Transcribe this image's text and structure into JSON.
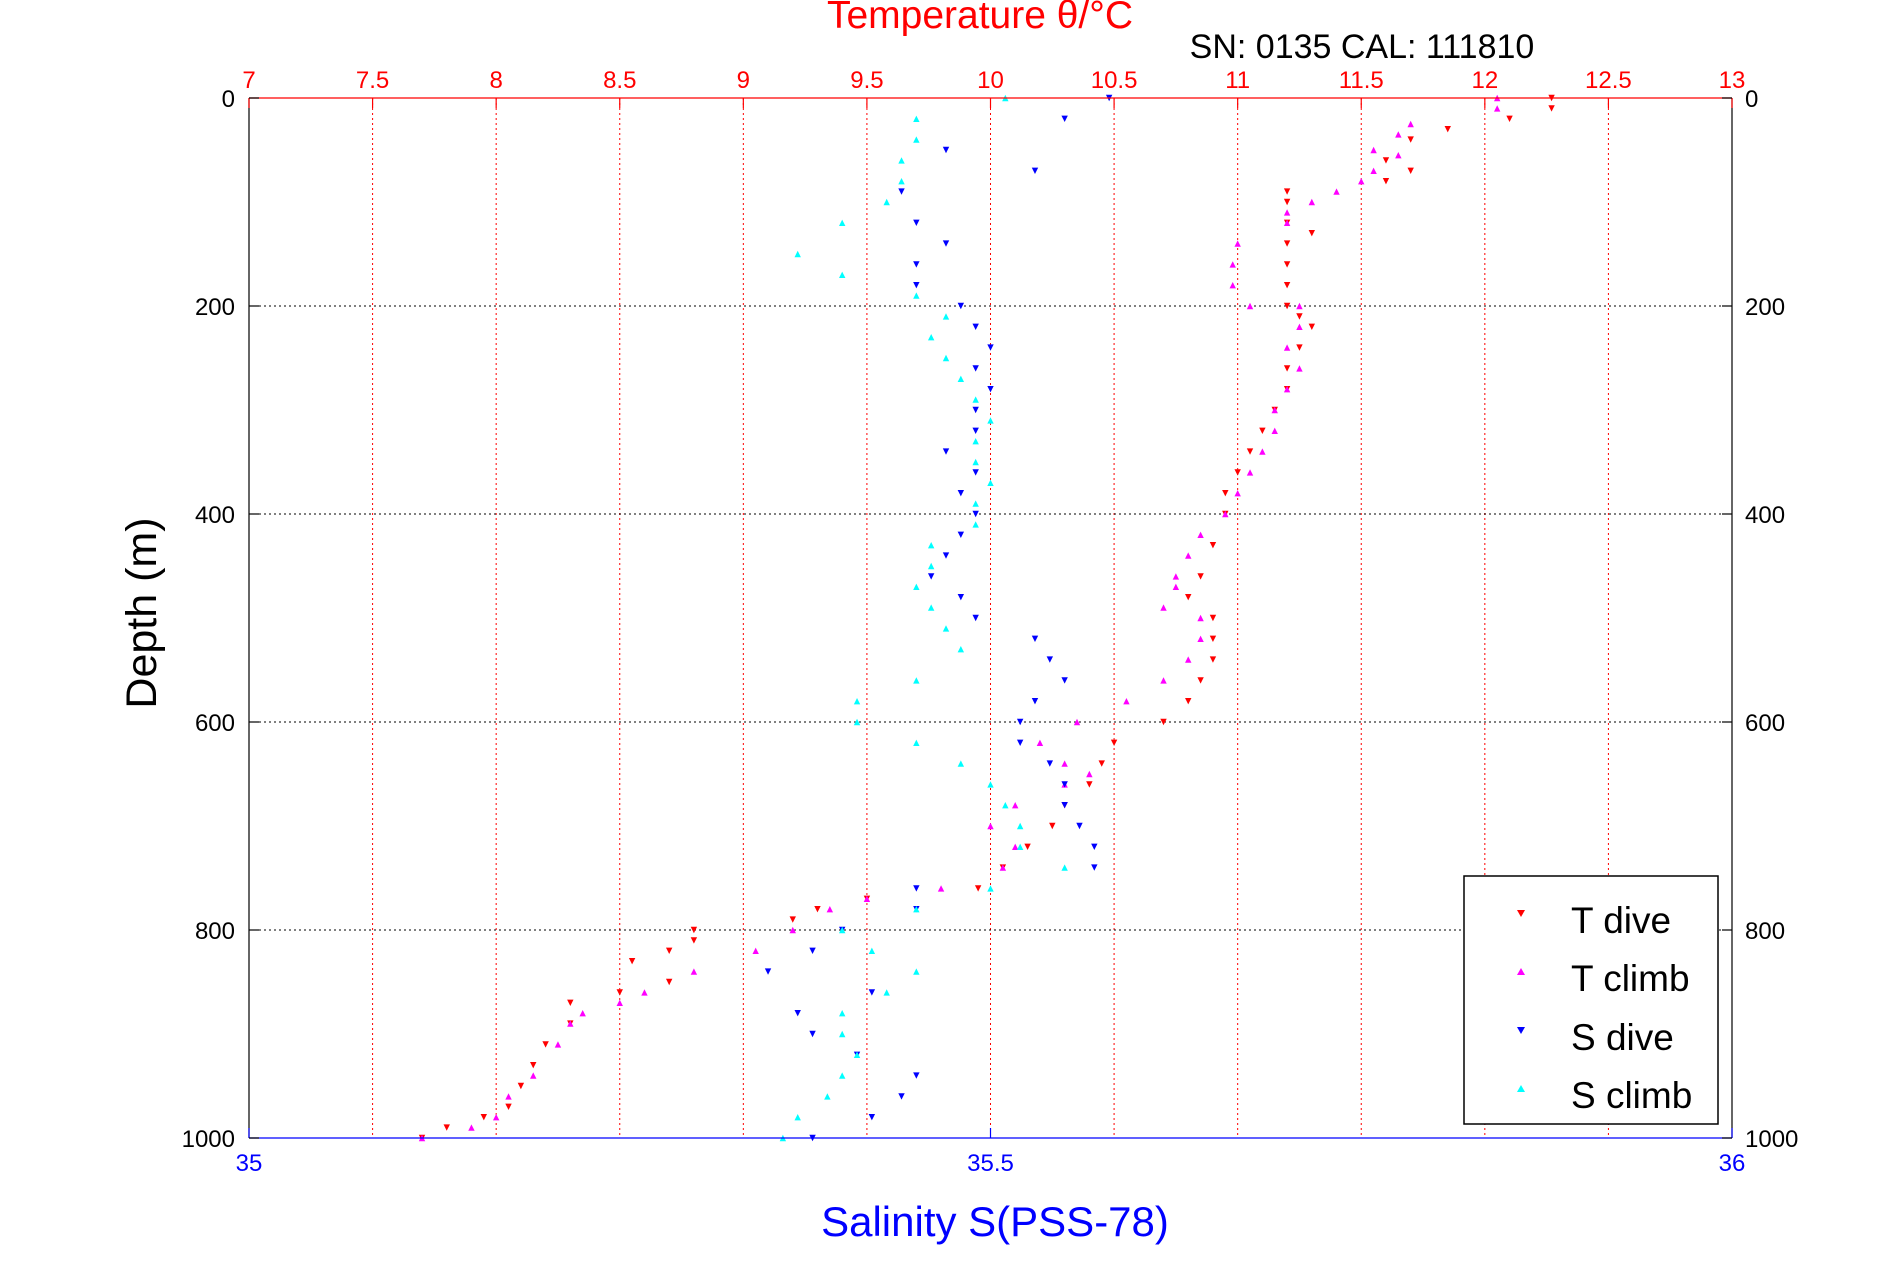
{
  "chart_data": {
    "type": "scatter",
    "title": "Temperature θ/°C",
    "subtitle": "SN: 0135  CAL: 111810",
    "ylabel": "Depth (m)",
    "xlabel_bottom": "Salinity S(PSS-78)",
    "xlabel_top": "Temperature θ/°C",
    "y_axis": {
      "range": [
        0,
        1000
      ],
      "reversed": true,
      "ticks": [
        0,
        200,
        400,
        600,
        800,
        1000
      ],
      "tick_labels": [
        "0",
        "200",
        "400",
        "600",
        "800",
        "1000"
      ]
    },
    "temperature_axis": {
      "range": [
        7,
        13
      ],
      "ticks": [
        7,
        7.5,
        8,
        8.5,
        9,
        9.5,
        10,
        10.5,
        11,
        11.5,
        12,
        12.5,
        13
      ],
      "tick_labels": [
        "7",
        "7.5",
        "8",
        "8.5",
        "9",
        "9.5",
        "10",
        "10.5",
        "11",
        "11.5",
        "12",
        "12.5",
        "13"
      ],
      "grid": true
    },
    "salinity_axis": {
      "range": [
        35,
        36
      ],
      "ticks": [
        35,
        35.5,
        36
      ],
      "tick_labels": [
        "35",
        "35.5",
        "36"
      ]
    },
    "grid": true,
    "legend_position": "bottom-right",
    "colors": {
      "temperature": "#ff0000",
      "salinity": "#0000ff",
      "t_dive": "#ff0000",
      "t_climb": "#ff00ff",
      "s_dive": "#0000ff",
      "s_climb": "#00ffff"
    },
    "series": [
      {
        "name": "T dive",
        "axis": "temperature",
        "color": "#ff0000",
        "marker": "down-triangle",
        "points": [
          [
            12.27,
            0
          ],
          [
            12.27,
            10
          ],
          [
            12.1,
            20
          ],
          [
            11.85,
            30
          ],
          [
            11.7,
            40
          ],
          [
            11.6,
            60
          ],
          [
            11.7,
            70
          ],
          [
            11.6,
            80
          ],
          [
            11.2,
            90
          ],
          [
            11.2,
            100
          ],
          [
            11.2,
            120
          ],
          [
            11.3,
            130
          ],
          [
            11.2,
            140
          ],
          [
            11.2,
            160
          ],
          [
            11.2,
            180
          ],
          [
            11.2,
            200
          ],
          [
            11.25,
            210
          ],
          [
            11.3,
            220
          ],
          [
            11.25,
            240
          ],
          [
            11.2,
            260
          ],
          [
            11.2,
            280
          ],
          [
            11.15,
            300
          ],
          [
            11.1,
            320
          ],
          [
            11.05,
            340
          ],
          [
            11.0,
            360
          ],
          [
            10.95,
            380
          ],
          [
            10.95,
            400
          ],
          [
            10.9,
            430
          ],
          [
            10.85,
            460
          ],
          [
            10.8,
            480
          ],
          [
            10.9,
            500
          ],
          [
            10.9,
            520
          ],
          [
            10.9,
            540
          ],
          [
            10.85,
            560
          ],
          [
            10.8,
            580
          ],
          [
            10.7,
            600
          ],
          [
            10.5,
            620
          ],
          [
            10.45,
            640
          ],
          [
            10.4,
            660
          ],
          [
            10.3,
            680
          ],
          [
            10.25,
            700
          ],
          [
            10.15,
            720
          ],
          [
            10.05,
            740
          ],
          [
            9.95,
            760
          ],
          [
            9.5,
            770
          ],
          [
            9.3,
            780
          ],
          [
            9.2,
            790
          ],
          [
            8.8,
            800
          ],
          [
            8.8,
            810
          ],
          [
            8.7,
            820
          ],
          [
            8.55,
            830
          ],
          [
            8.7,
            850
          ],
          [
            8.5,
            860
          ],
          [
            8.3,
            870
          ],
          [
            8.3,
            890
          ],
          [
            8.2,
            910
          ],
          [
            8.15,
            930
          ],
          [
            8.1,
            950
          ],
          [
            8.05,
            970
          ],
          [
            7.95,
            980
          ],
          [
            7.8,
            990
          ],
          [
            7.7,
            1000
          ]
        ]
      },
      {
        "name": "T climb",
        "axis": "temperature",
        "color": "#ff00ff",
        "marker": "up-triangle",
        "points": [
          [
            12.05,
            0
          ],
          [
            12.05,
            10
          ],
          [
            11.7,
            25
          ],
          [
            11.65,
            35
          ],
          [
            11.55,
            50
          ],
          [
            11.65,
            55
          ],
          [
            11.55,
            70
          ],
          [
            11.5,
            80
          ],
          [
            11.4,
            90
          ],
          [
            11.3,
            100
          ],
          [
            11.2,
            110
          ],
          [
            11.2,
            120
          ],
          [
            11.0,
            140
          ],
          [
            10.98,
            160
          ],
          [
            10.98,
            180
          ],
          [
            11.05,
            200
          ],
          [
            11.25,
            200
          ],
          [
            11.25,
            220
          ],
          [
            11.2,
            240
          ],
          [
            11.25,
            260
          ],
          [
            11.2,
            280
          ],
          [
            11.15,
            300
          ],
          [
            11.15,
            320
          ],
          [
            11.1,
            340
          ],
          [
            11.05,
            360
          ],
          [
            11.0,
            380
          ],
          [
            10.95,
            400
          ],
          [
            10.85,
            420
          ],
          [
            10.8,
            440
          ],
          [
            10.75,
            460
          ],
          [
            10.75,
            470
          ],
          [
            10.7,
            490
          ],
          [
            10.85,
            500
          ],
          [
            10.85,
            520
          ],
          [
            10.8,
            540
          ],
          [
            10.7,
            560
          ],
          [
            10.55,
            580
          ],
          [
            10.35,
            600
          ],
          [
            10.2,
            620
          ],
          [
            10.3,
            640
          ],
          [
            10.4,
            650
          ],
          [
            10.3,
            660
          ],
          [
            10.1,
            680
          ],
          [
            10.0,
            700
          ],
          [
            10.1,
            720
          ],
          [
            10.05,
            740
          ],
          [
            9.8,
            760
          ],
          [
            9.5,
            770
          ],
          [
            9.35,
            780
          ],
          [
            9.2,
            800
          ],
          [
            9.05,
            820
          ],
          [
            8.8,
            840
          ],
          [
            8.6,
            860
          ],
          [
            8.5,
            870
          ],
          [
            8.35,
            880
          ],
          [
            8.3,
            890
          ],
          [
            8.25,
            910
          ],
          [
            8.15,
            940
          ],
          [
            8.05,
            960
          ],
          [
            8.0,
            980
          ],
          [
            7.9,
            990
          ],
          [
            7.7,
            1000
          ]
        ]
      },
      {
        "name": "S dive",
        "axis": "salinity",
        "color": "#0000ff",
        "marker": "down-triangle",
        "points": [
          [
            35.58,
            0
          ],
          [
            35.55,
            20
          ],
          [
            35.47,
            50
          ],
          [
            35.53,
            70
          ],
          [
            35.44,
            90
          ],
          [
            35.45,
            120
          ],
          [
            35.47,
            140
          ],
          [
            35.45,
            160
          ],
          [
            35.45,
            180
          ],
          [
            35.48,
            200
          ],
          [
            35.49,
            220
          ],
          [
            35.5,
            240
          ],
          [
            35.49,
            260
          ],
          [
            35.5,
            280
          ],
          [
            35.49,
            300
          ],
          [
            35.49,
            320
          ],
          [
            35.47,
            340
          ],
          [
            35.49,
            360
          ],
          [
            35.48,
            380
          ],
          [
            35.49,
            400
          ],
          [
            35.48,
            420
          ],
          [
            35.47,
            440
          ],
          [
            35.46,
            460
          ],
          [
            35.48,
            480
          ],
          [
            35.49,
            500
          ],
          [
            35.53,
            520
          ],
          [
            35.54,
            540
          ],
          [
            35.55,
            560
          ],
          [
            35.53,
            580
          ],
          [
            35.52,
            600
          ],
          [
            35.52,
            620
          ],
          [
            35.54,
            640
          ],
          [
            35.55,
            660
          ],
          [
            35.55,
            680
          ],
          [
            35.56,
            700
          ],
          [
            35.57,
            720
          ],
          [
            35.57,
            740
          ],
          [
            35.45,
            760
          ],
          [
            35.45,
            780
          ],
          [
            35.4,
            800
          ],
          [
            35.38,
            820
          ],
          [
            35.35,
            840
          ],
          [
            35.42,
            860
          ],
          [
            35.37,
            880
          ],
          [
            35.38,
            900
          ],
          [
            35.41,
            920
          ],
          [
            35.45,
            940
          ],
          [
            35.44,
            960
          ],
          [
            35.42,
            980
          ],
          [
            35.38,
            1000
          ]
        ]
      },
      {
        "name": "S climb",
        "axis": "salinity",
        "color": "#00ffff",
        "marker": "up-triangle",
        "points": [
          [
            35.51,
            0
          ],
          [
            35.45,
            20
          ],
          [
            35.45,
            40
          ],
          [
            35.44,
            60
          ],
          [
            35.44,
            80
          ],
          [
            35.43,
            100
          ],
          [
            35.4,
            120
          ],
          [
            35.37,
            150
          ],
          [
            35.4,
            170
          ],
          [
            35.45,
            190
          ],
          [
            35.47,
            210
          ],
          [
            35.46,
            230
          ],
          [
            35.47,
            250
          ],
          [
            35.48,
            270
          ],
          [
            35.49,
            290
          ],
          [
            35.5,
            310
          ],
          [
            35.49,
            330
          ],
          [
            35.49,
            350
          ],
          [
            35.5,
            370
          ],
          [
            35.49,
            390
          ],
          [
            35.49,
            410
          ],
          [
            35.46,
            430
          ],
          [
            35.46,
            450
          ],
          [
            35.45,
            470
          ],
          [
            35.46,
            490
          ],
          [
            35.47,
            510
          ],
          [
            35.48,
            530
          ],
          [
            35.45,
            560
          ],
          [
            35.41,
            580
          ],
          [
            35.41,
            600
          ],
          [
            35.45,
            620
          ],
          [
            35.48,
            640
          ],
          [
            35.5,
            660
          ],
          [
            35.51,
            680
          ],
          [
            35.52,
            700
          ],
          [
            35.52,
            720
          ],
          [
            35.55,
            740
          ],
          [
            35.5,
            760
          ],
          [
            35.45,
            780
          ],
          [
            35.4,
            800
          ],
          [
            35.42,
            820
          ],
          [
            35.45,
            840
          ],
          [
            35.43,
            860
          ],
          [
            35.4,
            880
          ],
          [
            35.4,
            900
          ],
          [
            35.41,
            920
          ],
          [
            35.4,
            940
          ],
          [
            35.39,
            960
          ],
          [
            35.37,
            980
          ],
          [
            35.36,
            1000
          ]
        ]
      }
    ]
  }
}
